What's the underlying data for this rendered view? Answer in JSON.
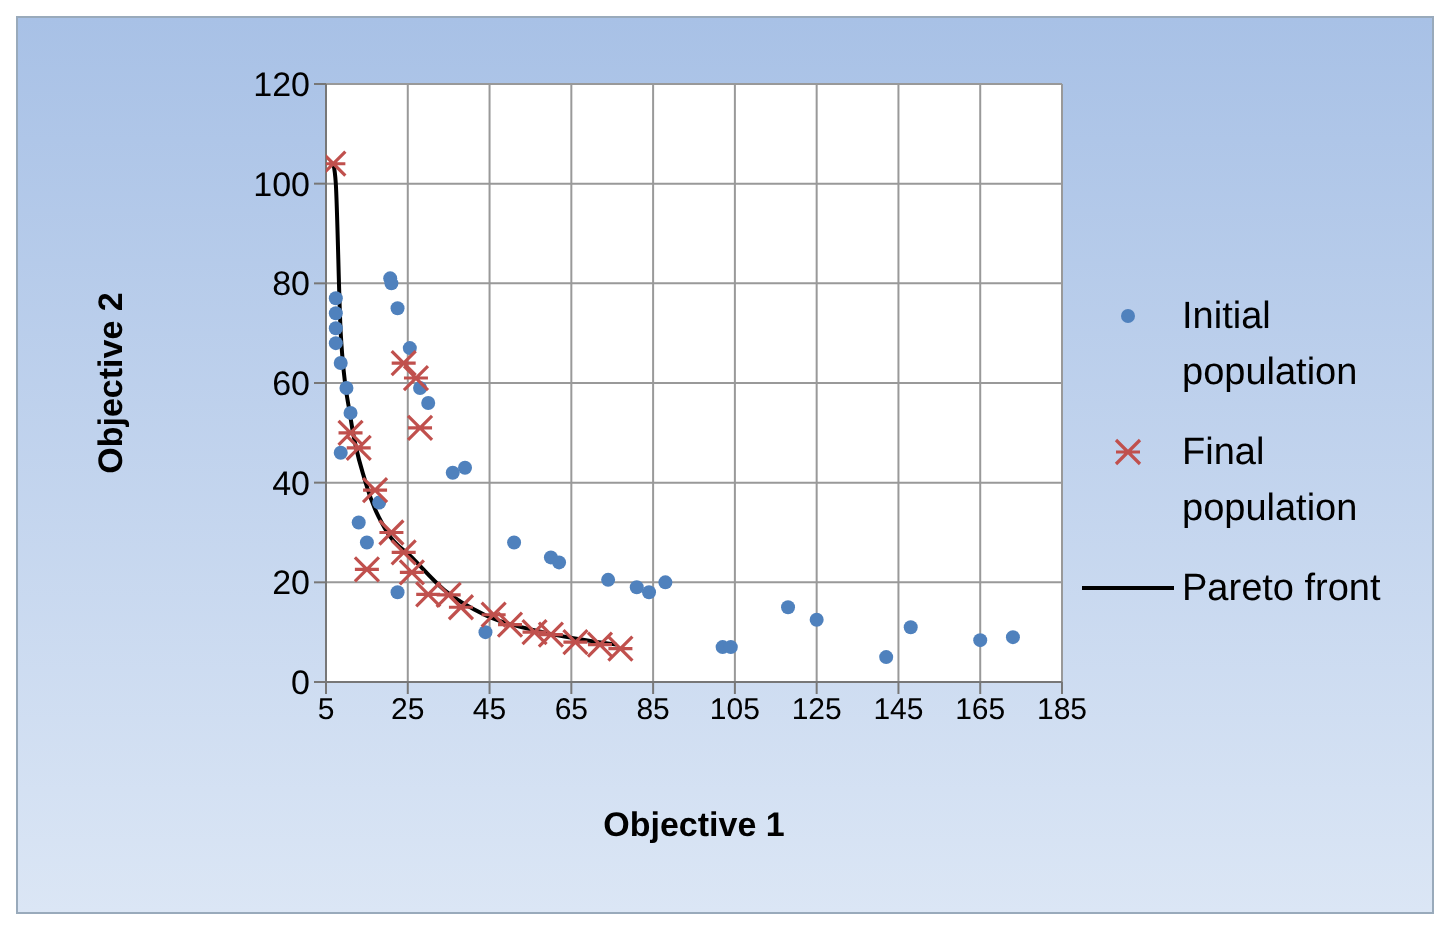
{
  "chart_data": {
    "type": "scatter",
    "xlabel": "Objective 1",
    "ylabel": "Objective 2",
    "xlim": [
      5,
      185
    ],
    "xticks": [
      5,
      25,
      45,
      65,
      85,
      105,
      125,
      145,
      165,
      185
    ],
    "ylim": [
      0,
      120
    ],
    "yticks": [
      0,
      20,
      40,
      60,
      80,
      100,
      120
    ],
    "grid": true,
    "legend": "right",
    "series": [
      {
        "name": "Initial population",
        "marker": "circle",
        "color": "#4f81bd",
        "x": [
          20.7,
          21,
          22.5,
          25.5,
          28,
          30,
          36,
          39,
          51,
          60,
          62,
          74,
          81,
          84,
          88,
          22.5,
          44,
          118,
          125,
          102,
          104,
          142,
          148,
          165,
          173,
          7.4,
          7.4,
          7.4,
          7.4,
          8.6,
          10,
          11,
          8.6,
          13,
          15,
          18
        ],
        "values": [
          81,
          80,
          75,
          67,
          59,
          56,
          42,
          43,
          28,
          25,
          24,
          20.5,
          19,
          18,
          20,
          18,
          10,
          15,
          12.5,
          7,
          7,
          5,
          11,
          8.4,
          9,
          77,
          74,
          71,
          68,
          64,
          59,
          54,
          46,
          32,
          28,
          36
        ]
      },
      {
        "name": "Final population",
        "marker": "cross",
        "color": "#c0504d",
        "x": [
          6.8,
          24,
          27,
          28,
          11,
          13,
          17,
          15,
          21,
          24,
          26,
          30,
          35,
          38,
          46,
          50,
          56,
          60,
          66,
          72,
          77
        ],
        "values": [
          104,
          64,
          61,
          51,
          50,
          47,
          38.5,
          22.6,
          30,
          26,
          22,
          17.6,
          17.5,
          15,
          13.5,
          11.5,
          10,
          9.5,
          8,
          7.5,
          6.7
        ]
      },
      {
        "name": "Pareto front",
        "type": "line",
        "marker": "none",
        "color": "#000000",
        "x": [
          6.8,
          7.4,
          8.6,
          11,
          14.7,
          20,
          26,
          34,
          44,
          58,
          76
        ],
        "values": [
          104,
          100,
          70,
          53,
          40,
          30,
          25,
          18.4,
          13.4,
          10,
          7.5
        ]
      }
    ]
  }
}
